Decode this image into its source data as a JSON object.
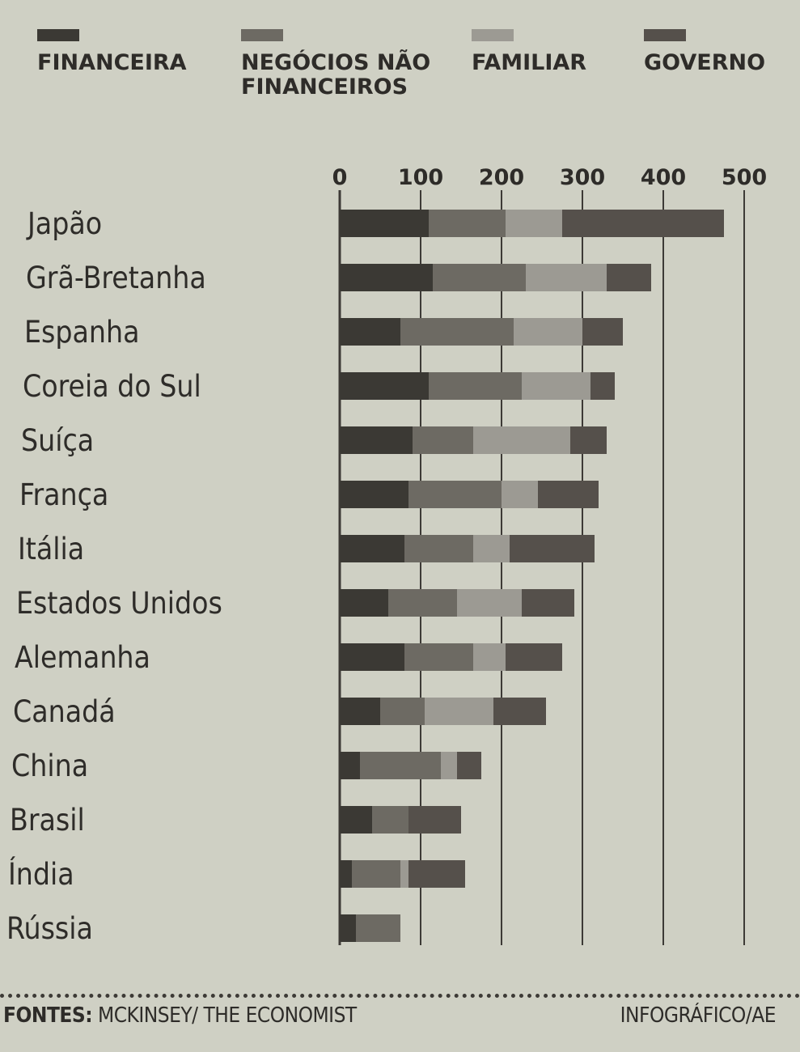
{
  "legend": [
    {
      "label": "FINANCEIRA",
      "color": "#3b3934"
    },
    {
      "label": "NEGÓCIOS NÃO\nFINANCEIROS",
      "color": "#6d6a63"
    },
    {
      "label": "FAMILIAR",
      "color": "#9c9a93"
    },
    {
      "label": "GOVERNO",
      "color": "#55504b"
    }
  ],
  "chart_data": {
    "type": "bar",
    "orientation": "horizontal",
    "stacked": true,
    "categories": [
      "Japão",
      "Grã-Bretanha",
      "Espanha",
      "Coreia do Sul",
      "Suíça",
      "França",
      "Itália",
      "Estados Unidos",
      "Alemanha",
      "Canadá",
      "China",
      "Brasil",
      "Índia",
      "Rússia"
    ],
    "series": [
      {
        "name": "FINANCEIRA",
        "color": "#3b3934",
        "values": [
          110,
          115,
          75,
          110,
          90,
          85,
          80,
          60,
          80,
          50,
          25,
          40,
          15,
          20
        ]
      },
      {
        "name": "NEGÓCIOS NÃO FINANCEIROS",
        "color": "#6d6a63",
        "values": [
          95,
          115,
          140,
          115,
          75,
          115,
          85,
          85,
          85,
          55,
          100,
          45,
          60,
          55
        ]
      },
      {
        "name": "FAMILIAR",
        "color": "#9c9a93",
        "values": [
          70,
          100,
          85,
          85,
          120,
          45,
          45,
          80,
          40,
          85,
          20,
          0,
          10,
          0
        ]
      },
      {
        "name": "GOVERNO",
        "color": "#55504b",
        "values": [
          200,
          55,
          50,
          30,
          45,
          75,
          105,
          65,
          70,
          65,
          30,
          65,
          70,
          0
        ]
      }
    ],
    "xticks": [
      "0",
      "100",
      "200",
      "300",
      "400",
      "500"
    ],
    "xlim": [
      0,
      500
    ],
    "grid": true,
    "legend_position": "top"
  },
  "footer": {
    "source_label": "FONTES:",
    "source_text": " MCKINSEY/ THE ECONOMIST",
    "credit": "INFOGRÁFICO/AE"
  }
}
